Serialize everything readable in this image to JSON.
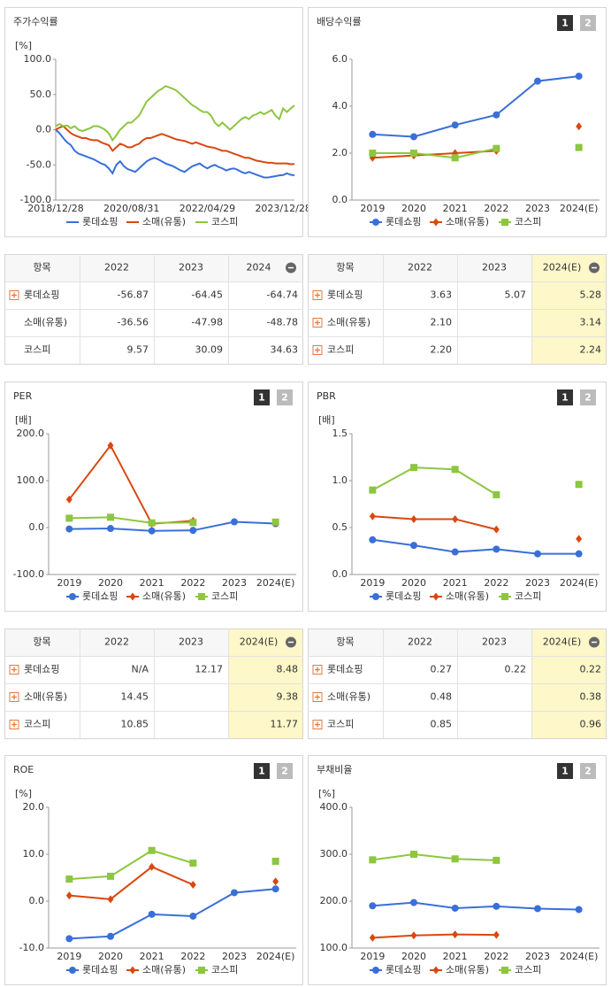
{
  "chart_data": [
    {
      "type": "line",
      "title": "주가수익률",
      "unit": "[%]",
      "categories": [
        "2018/12/28",
        null,
        null,
        null,
        null,
        null,
        null,
        null,
        null,
        null,
        null,
        null,
        null,
        null,
        null,
        null,
        null,
        null,
        null,
        null,
        "2020/08/31",
        null,
        null,
        null,
        null,
        null,
        null,
        null,
        null,
        null,
        null,
        null,
        null,
        null,
        null,
        null,
        null,
        null,
        null,
        null,
        "2022/04/29",
        null,
        null,
        null,
        null,
        null,
        null,
        null,
        null,
        null,
        null,
        null,
        null,
        null,
        null,
        null,
        null,
        null,
        null,
        null,
        "2023/12/28",
        null,
        null,
        null
      ],
      "ylim": [
        -100,
        100
      ],
      "yticks": [
        {
          "value": 100,
          "label": "100.0"
        },
        {
          "value": 50,
          "label": "50.0"
        },
        {
          "value": 0,
          "label": "0.0"
        },
        {
          "value": -50,
          "label": "-50.0"
        },
        {
          "value": -100,
          "label": "-100.0"
        }
      ],
      "series": [
        {
          "name": "롯데쇼핑",
          "color": "#3a6fd8",
          "values": [
            0,
            -5,
            -12,
            -18,
            -22,
            -30,
            -34,
            -36,
            -38,
            -40,
            -42,
            -45,
            -48,
            -50,
            -55,
            -62,
            -50,
            -45,
            -52,
            -56,
            -58,
            -60,
            -55,
            -50,
            -45,
            -42,
            -40,
            -42,
            -45,
            -48,
            -50,
            -52,
            -55,
            -58,
            -60,
            -56,
            -52,
            -50,
            -48,
            -52,
            -55,
            -52,
            -50,
            -53,
            -55,
            -58,
            -56,
            -55,
            -57,
            -60,
            -62,
            -60,
            -62,
            -64,
            -66,
            -68,
            -68,
            -67,
            -66,
            -65,
            -64.45,
            -62,
            -64,
            -64.74
          ]
        },
        {
          "name": "소매(유통)",
          "color": "#d9480f",
          "values": [
            0,
            3,
            5,
            0,
            -5,
            -8,
            -10,
            -12,
            -12,
            -14,
            -15,
            -15,
            -18,
            -20,
            -22,
            -30,
            -25,
            -20,
            -22,
            -25,
            -25,
            -22,
            -20,
            -15,
            -12,
            -12,
            -10,
            -8,
            -6,
            -8,
            -10,
            -12,
            -14,
            -15,
            -16,
            -18,
            -20,
            -18,
            -20,
            -22,
            -24,
            -25,
            -26,
            -28,
            -30,
            -30,
            -32,
            -34,
            -36,
            -38,
            -40,
            -40,
            -42,
            -44,
            -45,
            -46,
            -47,
            -47,
            -48,
            -48,
            -47.98,
            -48,
            -49,
            -48.78
          ]
        },
        {
          "name": "코스피",
          "color": "#8dc63f",
          "values": [
            5,
            8,
            5,
            6,
            2,
            5,
            0,
            -2,
            0,
            2,
            5,
            5,
            3,
            0,
            -5,
            -15,
            -8,
            0,
            5,
            10,
            10,
            15,
            20,
            30,
            40,
            45,
            50,
            55,
            58,
            62,
            60,
            58,
            55,
            50,
            45,
            40,
            35,
            32,
            28,
            25,
            25,
            20,
            10,
            5,
            10,
            5,
            0,
            5,
            10,
            15,
            18,
            15,
            20,
            22,
            25,
            22,
            25,
            28,
            20,
            15,
            30.09,
            25,
            30,
            34.63
          ]
        }
      ]
    },
    {
      "type": "line",
      "title": "배당수익률",
      "buttons": [
        "1",
        "2"
      ],
      "categories": [
        "2019",
        "2020",
        "2021",
        "2022",
        "2023",
        "2024(E)"
      ],
      "ylim": [
        0,
        6
      ],
      "yticks": [
        {
          "value": 0,
          "label": "0.0"
        },
        {
          "value": 2,
          "label": "2.0"
        },
        {
          "value": 4,
          "label": "4.0"
        },
        {
          "value": 6,
          "label": "6.0"
        }
      ],
      "series": [
        {
          "name": "롯데쇼핑",
          "color": "#3a6fd8",
          "marker": "circle",
          "values": [
            2.8,
            2.7,
            3.2,
            3.63,
            5.07,
            5.28
          ]
        },
        {
          "name": "소매(유통)",
          "color": "#d9480f",
          "marker": "diamond",
          "values": [
            1.8,
            1.9,
            2.0,
            2.1,
            null,
            3.14
          ]
        },
        {
          "name": "코스피",
          "color": "#8dc63f",
          "marker": "square",
          "values": [
            2.0,
            2.0,
            1.8,
            2.2,
            null,
            2.24
          ]
        }
      ]
    },
    {
      "type": "line",
      "title": "PER",
      "buttons": [
        "1",
        "2"
      ],
      "unit": "[배]",
      "categories": [
        "2019",
        "2020",
        "2021",
        "2022",
        "2023",
        "2024(E)"
      ],
      "ylim": [
        -100,
        200
      ],
      "yticks": [
        {
          "value": -100,
          "label": "-100.0"
        },
        {
          "value": 0,
          "label": "0.0"
        },
        {
          "value": 100,
          "label": "100.0"
        },
        {
          "value": 200,
          "label": "200.0"
        }
      ],
      "series": [
        {
          "name": "롯데쇼핑",
          "color": "#3a6fd8",
          "marker": "circle",
          "values": [
            -3,
            -2,
            -7,
            -6,
            12.17,
            8.48
          ]
        },
        {
          "name": "소매(유통)",
          "color": "#d9480f",
          "marker": "diamond",
          "values": [
            60,
            175,
            8,
            14.45,
            null,
            9.38
          ]
        },
        {
          "name": "코스피",
          "color": "#8dc63f",
          "marker": "square",
          "values": [
            20,
            22,
            10,
            10.85,
            null,
            11.77
          ]
        }
      ]
    },
    {
      "type": "line",
      "title": "PBR",
      "buttons": [
        "1",
        "2"
      ],
      "unit": "[배]",
      "categories": [
        "2019",
        "2020",
        "2021",
        "2022",
        "2023",
        "2024(E)"
      ],
      "ylim": [
        0,
        1.5
      ],
      "yticks": [
        {
          "value": 0,
          "label": "0.0"
        },
        {
          "value": 0.5,
          "label": "0.5"
        },
        {
          "value": 1,
          "label": "1.0"
        },
        {
          "value": 1.5,
          "label": "1.5"
        }
      ],
      "series": [
        {
          "name": "롯데쇼핑",
          "color": "#3a6fd8",
          "marker": "circle",
          "values": [
            0.37,
            0.31,
            0.24,
            0.27,
            0.22,
            0.22
          ]
        },
        {
          "name": "소매(유통)",
          "color": "#d9480f",
          "marker": "diamond",
          "values": [
            0.62,
            0.59,
            0.59,
            0.48,
            null,
            0.38
          ]
        },
        {
          "name": "코스피",
          "color": "#8dc63f",
          "marker": "square",
          "values": [
            0.9,
            1.14,
            1.12,
            0.85,
            null,
            0.96
          ]
        }
      ]
    },
    {
      "type": "line",
      "title": "ROE",
      "buttons": [
        "1",
        "2"
      ],
      "unit": "[%]",
      "categories": [
        "2019",
        "2020",
        "2021",
        "2022",
        "2023",
        "2024(E)"
      ],
      "ylim": [
        -10,
        20
      ],
      "yticks": [
        {
          "value": -10,
          "label": "-10.0"
        },
        {
          "value": 0,
          "label": "0.0"
        },
        {
          "value": 10,
          "label": "10.0"
        },
        {
          "value": 20,
          "label": "20.0"
        }
      ],
      "series": [
        {
          "name": "롯데쇼핑",
          "color": "#3a6fd8",
          "marker": "circle",
          "values": [
            -8,
            -7.5,
            -2.8,
            -3.2,
            1.8,
            2.6
          ]
        },
        {
          "name": "소매(유통)",
          "color": "#d9480f",
          "marker": "diamond",
          "values": [
            1.2,
            0.4,
            7.3,
            3.5,
            null,
            4.2
          ]
        },
        {
          "name": "코스피",
          "color": "#8dc63f",
          "marker": "square",
          "values": [
            4.7,
            5.3,
            10.8,
            8.1,
            null,
            8.5
          ]
        }
      ]
    },
    {
      "type": "line",
      "title": "부채비율",
      "buttons": [
        "1",
        "2"
      ],
      "unit": "[%]",
      "categories": [
        "2019",
        "2020",
        "2021",
        "2022",
        "2023",
        "2024(E)"
      ],
      "ylim": [
        100,
        400
      ],
      "yticks": [
        {
          "value": 100,
          "label": "100.0"
        },
        {
          "value": 200,
          "label": "200.0"
        },
        {
          "value": 300,
          "label": "300.0"
        },
        {
          "value": 400,
          "label": "400.0"
        }
      ],
      "series": [
        {
          "name": "롯데쇼핑",
          "color": "#3a6fd8",
          "marker": "circle",
          "values": [
            190,
            197,
            185,
            189,
            184,
            182
          ]
        },
        {
          "name": "소매(유통)",
          "color": "#d9480f",
          "marker": "diamond",
          "values": [
            122,
            127,
            129,
            128,
            null,
            null
          ]
        },
        {
          "name": "코스피",
          "color": "#8dc63f",
          "marker": "square",
          "values": [
            288,
            300,
            290,
            287,
            null,
            null
          ]
        }
      ]
    }
  ],
  "tables": [
    {
      "columns": [
        "항목",
        "2022",
        "2023",
        "2024"
      ],
      "highlight_last": false,
      "rows": [
        {
          "cells": [
            "롯데쇼핑",
            "-56.87",
            "-64.45",
            "-64.74"
          ],
          "expandable": true
        },
        {
          "cells": [
            "소매(유통)",
            "-36.56",
            "-47.98",
            "-48.78"
          ],
          "expandable": false
        },
        {
          "cells": [
            "코스피",
            "9.57",
            "30.09",
            "34.63"
          ],
          "expandable": false
        }
      ]
    },
    {
      "columns": [
        "항목",
        "2022",
        "2023",
        "2024(E)"
      ],
      "highlight_last": true,
      "rows": [
        {
          "cells": [
            "롯데쇼핑",
            "3.63",
            "5.07",
            "5.28"
          ],
          "expandable": true
        },
        {
          "cells": [
            "소매(유통)",
            "2.10",
            null,
            "3.14"
          ],
          "expandable": true
        },
        {
          "cells": [
            "코스피",
            "2.20",
            null,
            "2.24"
          ],
          "expandable": true
        }
      ]
    },
    {
      "columns": [
        "항목",
        "2022",
        "2023",
        "2024(E)"
      ],
      "highlight_last": true,
      "rows": [
        {
          "cells": [
            "롯데쇼핑",
            "N/A",
            "12.17",
            "8.48"
          ],
          "expandable": true
        },
        {
          "cells": [
            "소매(유통)",
            "14.45",
            null,
            "9.38"
          ],
          "expandable": true
        },
        {
          "cells": [
            "코스피",
            "10.85",
            null,
            "11.77"
          ],
          "expandable": true
        }
      ]
    },
    {
      "columns": [
        "항목",
        "2022",
        "2023",
        "2024(E)"
      ],
      "highlight_last": true,
      "rows": [
        {
          "cells": [
            "롯데쇼핑",
            "0.27",
            "0.22",
            "0.22"
          ],
          "expandable": true
        },
        {
          "cells": [
            "소매(유통)",
            "0.48",
            null,
            "0.38"
          ],
          "expandable": true
        },
        {
          "cells": [
            "코스피",
            "0.85",
            null,
            "0.96"
          ],
          "expandable": true
        }
      ]
    }
  ]
}
